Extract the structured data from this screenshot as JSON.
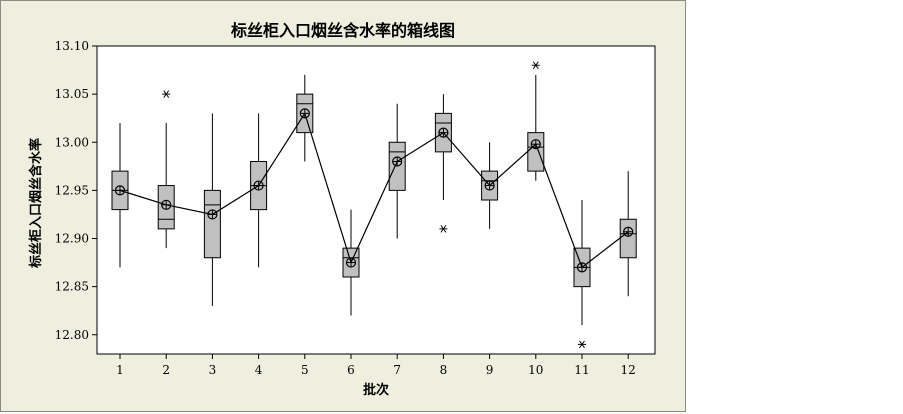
{
  "chart_data": {
    "type": "box",
    "title": "标丝柜入口烟丝含水率的箱线图",
    "xlabel": "批次",
    "ylabel": "标丝柜入口烟丝含水率",
    "categories": [
      "1",
      "2",
      "3",
      "4",
      "5",
      "6",
      "7",
      "8",
      "9",
      "10",
      "11",
      "12"
    ],
    "ylim": [
      12.78,
      13.1
    ],
    "yticks": [
      12.8,
      12.85,
      12.9,
      12.95,
      13.0,
      13.05,
      13.1
    ],
    "ytick_labels": [
      "12.80",
      "12.85",
      "12.90",
      "12.95",
      "13.00",
      "13.05",
      "13.10"
    ],
    "grid": false,
    "mean_line": true,
    "boxes": [
      {
        "category": "1",
        "whisker_low": 12.87,
        "q1": 12.93,
        "median": 12.95,
        "q3": 12.97,
        "whisker_high": 13.02,
        "mean": 12.95,
        "outliers": []
      },
      {
        "category": "2",
        "whisker_low": 12.89,
        "q1": 12.91,
        "median": 12.92,
        "q3": 12.955,
        "whisker_high": 13.02,
        "mean": 12.935,
        "outliers": [
          13.05
        ]
      },
      {
        "category": "3",
        "whisker_low": 12.83,
        "q1": 12.88,
        "median": 12.935,
        "q3": 12.95,
        "whisker_high": 13.03,
        "mean": 12.925,
        "outliers": []
      },
      {
        "category": "4",
        "whisker_low": 12.87,
        "q1": 12.93,
        "median": 12.955,
        "q3": 12.98,
        "whisker_high": 13.03,
        "mean": 12.955,
        "outliers": []
      },
      {
        "category": "5",
        "whisker_low": 12.98,
        "q1": 13.01,
        "median": 13.04,
        "q3": 13.05,
        "whisker_high": 13.07,
        "mean": 13.03,
        "outliers": []
      },
      {
        "category": "6",
        "whisker_low": 12.82,
        "q1": 12.86,
        "median": 12.88,
        "q3": 12.89,
        "whisker_high": 12.93,
        "mean": 12.875,
        "outliers": []
      },
      {
        "category": "7",
        "whisker_low": 12.9,
        "q1": 12.95,
        "median": 12.99,
        "q3": 13.0,
        "whisker_high": 13.04,
        "mean": 12.98,
        "outliers": []
      },
      {
        "category": "8",
        "whisker_low": 12.94,
        "q1": 12.99,
        "median": 13.02,
        "q3": 13.03,
        "whisker_high": 13.05,
        "mean": 13.01,
        "outliers": [
          12.91
        ]
      },
      {
        "category": "9",
        "whisker_low": 12.91,
        "q1": 12.94,
        "median": 12.96,
        "q3": 12.97,
        "whisker_high": 13.0,
        "mean": 12.955,
        "outliers": []
      },
      {
        "category": "10",
        "whisker_low": 12.96,
        "q1": 12.97,
        "median": 12.995,
        "q3": 13.01,
        "whisker_high": 13.07,
        "mean": 12.998,
        "outliers": [
          13.08
        ]
      },
      {
        "category": "11",
        "whisker_low": 12.81,
        "q1": 12.85,
        "median": 12.87,
        "q3": 12.89,
        "whisker_high": 12.94,
        "mean": 12.87,
        "outliers": [
          12.79
        ]
      },
      {
        "category": "12",
        "whisker_low": 12.84,
        "q1": 12.88,
        "median": 12.905,
        "q3": 12.92,
        "whisker_high": 12.97,
        "mean": 12.907,
        "outliers": []
      }
    ],
    "colors": {
      "box_fill": "#c0c0c0",
      "frame_bg": "#efefdf",
      "plot_bg": "#ffffff",
      "line": "#000000"
    }
  }
}
